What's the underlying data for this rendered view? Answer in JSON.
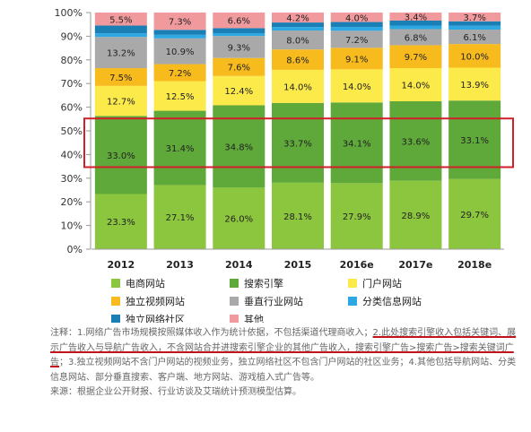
{
  "chart_data": {
    "type": "bar",
    "stacked": true,
    "percent": true,
    "categories": [
      "2012",
      "2013",
      "2014",
      "2015",
      "2016e",
      "2017e",
      "2018e"
    ],
    "yticks": [
      "0%",
      "10%",
      "20%",
      "30%",
      "40%",
      "50%",
      "60%",
      "70%",
      "80%",
      "90%",
      "100%"
    ],
    "ylim": [
      0,
      100
    ],
    "grid": false,
    "legend_position": "bottom",
    "series": [
      {
        "name": "电商网站",
        "color": "#8cc63e",
        "values": [
          23.3,
          27.1,
          26.0,
          28.1,
          27.9,
          28.9,
          29.7
        ],
        "labels": [
          "23.3%",
          "27.1%",
          "26.0%",
          "28.1%",
          "27.9%",
          "28.9%",
          "29.7%"
        ]
      },
      {
        "name": "搜索引擎",
        "color": "#5fa83a",
        "values": [
          33.0,
          31.4,
          34.8,
          33.7,
          34.1,
          33.6,
          33.1
        ],
        "labels": [
          "33.0%",
          "31.4%",
          "34.8%",
          "33.7%",
          "34.1%",
          "33.6%",
          "33.1%"
        ]
      },
      {
        "name": "门户网站",
        "color": "#fce94a",
        "values": [
          12.7,
          12.5,
          12.4,
          14.0,
          14.0,
          14.0,
          13.9
        ],
        "labels": [
          "12.7%",
          "12.5%",
          "12.4%",
          "14.0%",
          "14.0%",
          "14.0%",
          "13.9%"
        ]
      },
      {
        "name": "独立视频网站",
        "color": "#f8bb1d",
        "values": [
          7.5,
          7.2,
          7.6,
          8.6,
          9.1,
          9.7,
          10.0
        ],
        "labels": [
          "7.5%",
          "7.2%",
          "7.6%",
          "8.6%",
          "9.1%",
          "9.7%",
          "10.0%"
        ]
      },
      {
        "name": "垂直行业网站",
        "color": "#a9a9a9",
        "values": [
          13.2,
          10.9,
          9.3,
          8.0,
          7.2,
          6.8,
          6.1
        ],
        "labels": [
          "13.2%",
          "10.9%",
          "9.3%",
          "8.0%",
          "7.2%",
          "6.8%",
          "6.1%"
        ]
      },
      {
        "name": "分类信息网站",
        "color": "#2da8e2",
        "values": [
          1.5,
          1.5,
          1.2,
          1.5,
          1.6,
          1.5,
          1.6
        ],
        "labels": [
          "",
          "",
          "",
          "",
          "",
          "",
          ""
        ]
      },
      {
        "name": "独立网络社区",
        "color": "#1a7fb5",
        "values": [
          3.3,
          2.1,
          2.1,
          1.9,
          2.1,
          2.1,
          1.9
        ],
        "labels": [
          "",
          "",
          "",
          "",
          "",
          "",
          ""
        ]
      },
      {
        "name": "其他",
        "color": "#f19a9e",
        "values": [
          5.5,
          7.3,
          6.6,
          4.2,
          4.0,
          3.4,
          3.7
        ],
        "labels": [
          "5.5%",
          "7.3%",
          "6.6%",
          "4.2%",
          "4.0%",
          "3.4%",
          "3.7%"
        ]
      }
    ],
    "highlight_series": "搜索引擎",
    "highlight_color": "#d0202a"
  },
  "notes": {
    "p1_a": "注释：1.网络广告市场规模按照媒体收入作为统计依据，不包括渠道代理商收入；",
    "p1_b": "2.此处搜索引擎收入包括关键词、展示广告收入与导航广告收入，不含网站合并进搜索引擎企业的其他广告收入，搜索引擎广告>搜索广告>搜索关键词广告",
    "p1_c": "；3.独立视频网站不含门户网站的视频业务，独立网络社区不包含门户网站的社区业务；4.其他包括导航网站、分类信息网站、部分垂直搜索、客户端、地方网站、游戏植入式广告等。",
    "p2": "来源：根据企业公开财报、行业访谈及艾瑞统计预测模型估算。"
  }
}
